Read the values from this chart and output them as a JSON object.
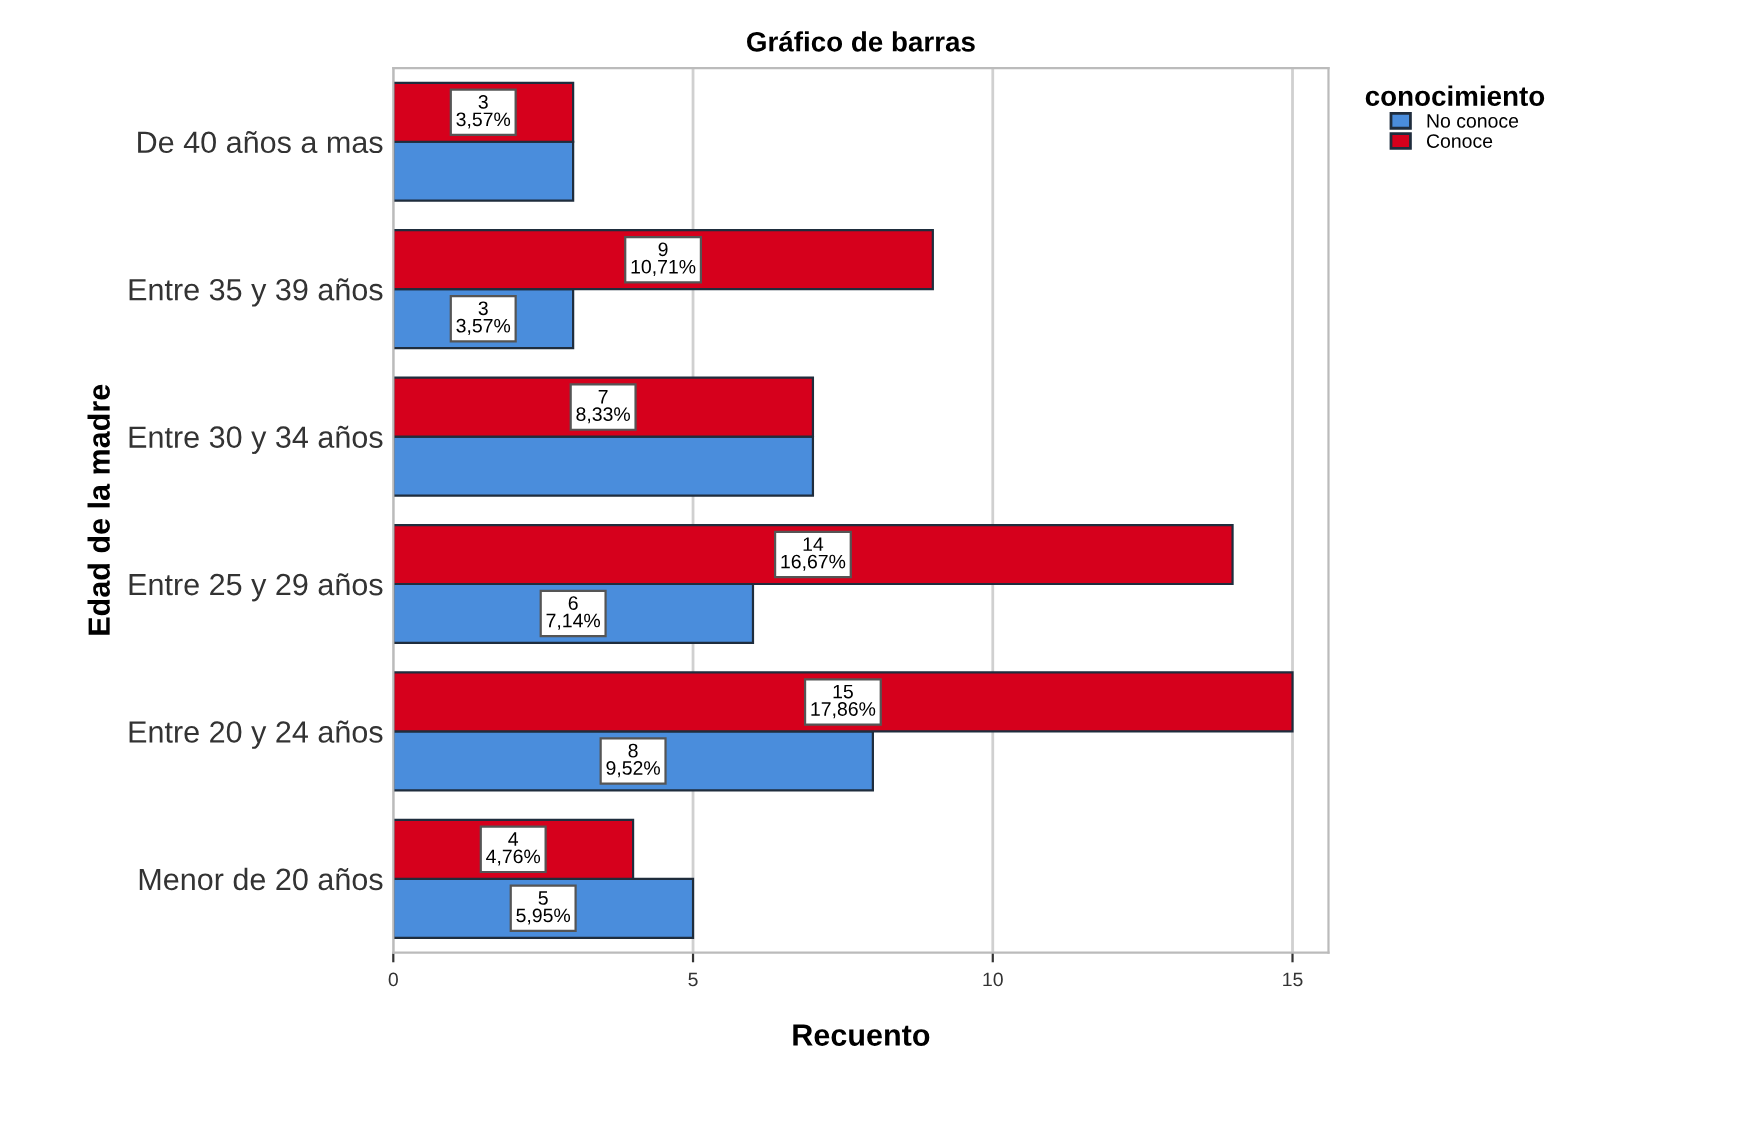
{
  "chart_data": {
    "type": "bar",
    "orientation": "horizontal",
    "title": "Gráfico de barras",
    "xlabel": "Recuento",
    "ylabel": "Edad de la madre",
    "legend_title": "conocimiento",
    "legend": "top right",
    "grid": "x",
    "categories": [
      "De 40 años a mas",
      "Entre 35 y 39 años",
      "Entre 30 y 34 años",
      "Entre 25 y 29 años",
      "Entre 20 y 24 años",
      "Menor de 20 años"
    ],
    "xlim": [
      0,
      15.6
    ],
    "xticks": [
      0,
      5,
      10,
      15
    ],
    "series": [
      {
        "name": "No conoce",
        "color": "#4a8ddc",
        "values": [
          3,
          3,
          7,
          6,
          8,
          5
        ],
        "value_labels": [
          null,
          "3\n3,57%",
          null,
          "6\n7,14%",
          "8\n9,52%",
          "5\n5,95%"
        ]
      },
      {
        "name": "Conoce",
        "color": "#d6001c",
        "values": [
          3,
          9,
          7,
          14,
          15,
          4
        ],
        "value_labels": [
          "3\n3,57%",
          "9\n10,71%",
          "7\n8,33%",
          "14\n16,67%",
          "15\n17,86%",
          "4\n4,76%"
        ]
      }
    ]
  }
}
